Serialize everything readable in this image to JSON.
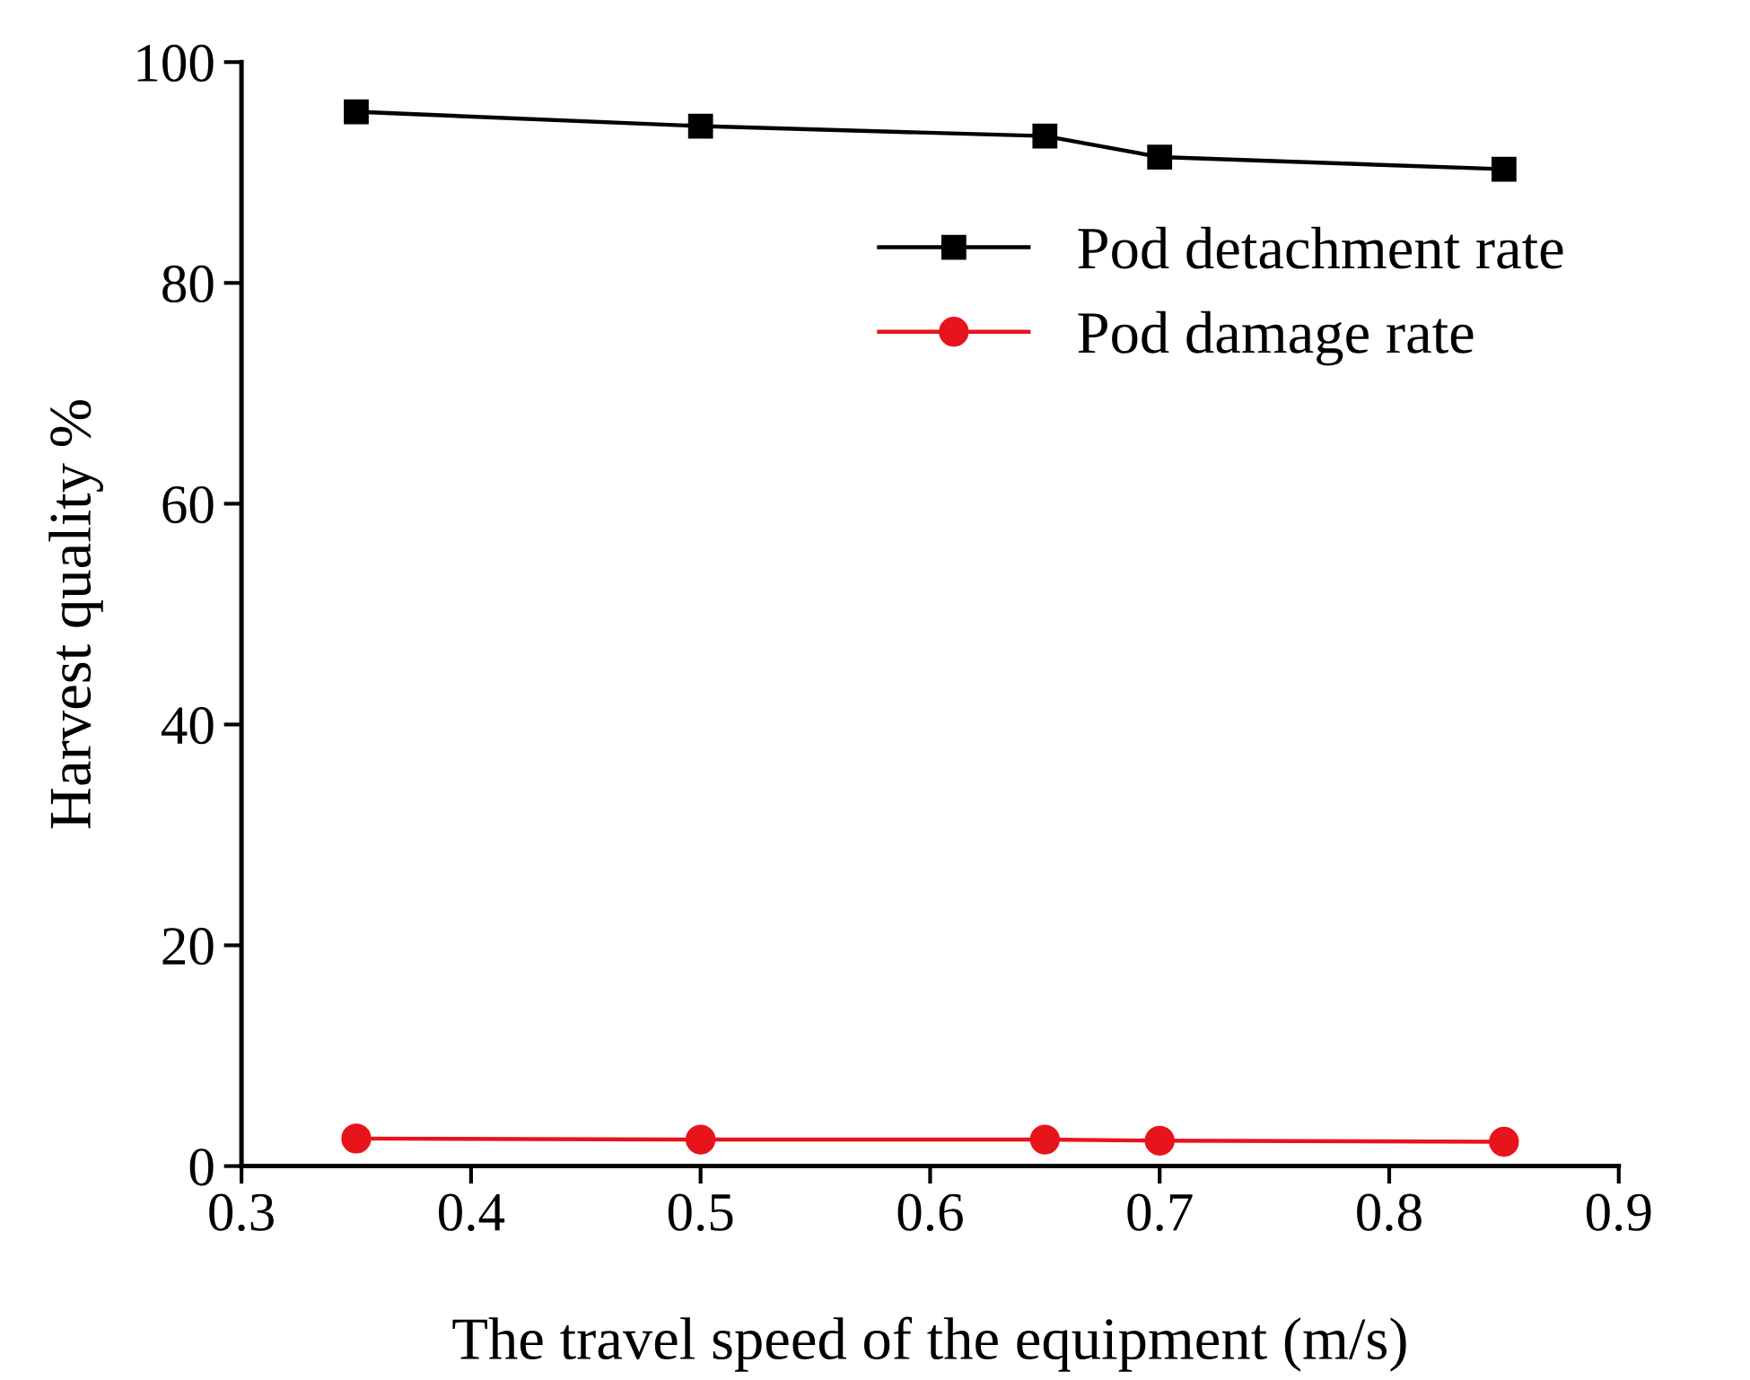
{
  "chart_data": {
    "type": "line",
    "xlabel": "The travel speed of the equipment (m/s)",
    "ylabel": "Harvest quality %",
    "x": [
      0.35,
      0.5,
      0.65,
      0.7,
      0.85
    ],
    "series": [
      {
        "name": "Pod detachment rate",
        "color": "#000000",
        "marker": "square",
        "values": [
          95.5,
          94.2,
          93.3,
          91.4,
          90.3
        ]
      },
      {
        "name": "Pod damage rate",
        "color": "#e8141c",
        "marker": "circle",
        "values": [
          2.5,
          2.4,
          2.4,
          2.3,
          2.2
        ]
      }
    ],
    "xlim": [
      0.3,
      0.9
    ],
    "xticks": [
      0.3,
      0.4,
      0.5,
      0.6,
      0.7,
      0.8,
      0.9
    ],
    "ylim": [
      0,
      100
    ],
    "yticks": [
      0,
      20,
      40,
      60,
      80,
      100
    ],
    "grid": false,
    "legend": "top right",
    "line_style": "solid"
  }
}
